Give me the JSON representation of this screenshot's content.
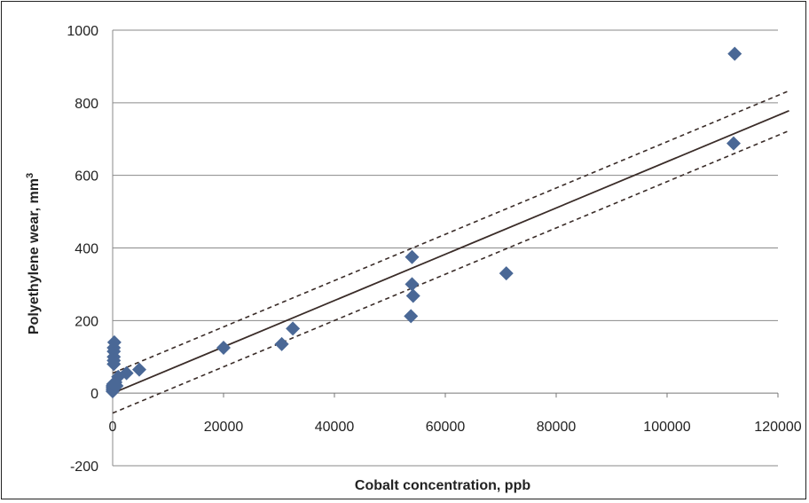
{
  "chart_data": {
    "type": "scatter",
    "title": "",
    "xlabel": "Cobalt concentration, ppb",
    "ylabel": "Polyethylene wear, mm",
    "ylabel_sup": "3",
    "xlim": [
      0,
      120000
    ],
    "ylim": [
      -200,
      1000
    ],
    "x_ticks": [
      0,
      20000,
      40000,
      60000,
      80000,
      100000,
      120000
    ],
    "y_ticks": [
      -200,
      0,
      200,
      400,
      600,
      800,
      1000
    ],
    "grid": "horizontal",
    "legend": "none",
    "marker_color": "#4a6896",
    "line_color": "#3a2c28",
    "points": [
      {
        "x": 0,
        "y": 5
      },
      {
        "x": 0,
        "y": 10
      },
      {
        "x": 0,
        "y": 15
      },
      {
        "x": 0,
        "y": 20
      },
      {
        "x": 100,
        "y": 25
      },
      {
        "x": 200,
        "y": 80
      },
      {
        "x": 200,
        "y": 90
      },
      {
        "x": 200,
        "y": 100
      },
      {
        "x": 200,
        "y": 115
      },
      {
        "x": 200,
        "y": 125
      },
      {
        "x": 300,
        "y": 140
      },
      {
        "x": 500,
        "y": 30
      },
      {
        "x": 700,
        "y": 20
      },
      {
        "x": 1000,
        "y": 45
      },
      {
        "x": 2500,
        "y": 55
      },
      {
        "x": 4800,
        "y": 65
      },
      {
        "x": 20000,
        "y": 125
      },
      {
        "x": 30500,
        "y": 135
      },
      {
        "x": 32500,
        "y": 178
      },
      {
        "x": 54000,
        "y": 375
      },
      {
        "x": 54000,
        "y": 300
      },
      {
        "x": 54200,
        "y": 268
      },
      {
        "x": 53800,
        "y": 212
      },
      {
        "x": 71000,
        "y": 330
      },
      {
        "x": 112200,
        "y": 935
      },
      {
        "x": 112000,
        "y": 688
      }
    ],
    "fit_line": {
      "x": [
        0,
        122000
      ],
      "y": [
        0,
        778
      ]
    },
    "upper_bound": {
      "x": [
        0,
        122000
      ],
      "y": [
        55,
        833
      ]
    },
    "lower_bound": {
      "x": [
        0,
        122000
      ],
      "y": [
        -55,
        723
      ]
    }
  }
}
